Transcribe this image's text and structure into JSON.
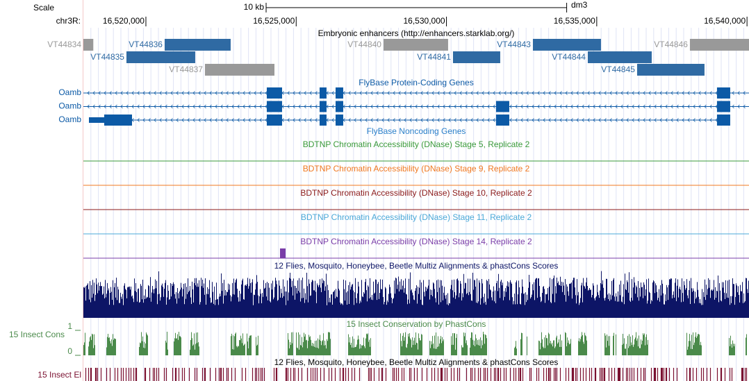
{
  "header": {
    "scale_label": "Scale",
    "chrom_label": "chr3R:",
    "scale_bar": {
      "value": 10000,
      "label": "10 kb"
    },
    "assembly": "dm3"
  },
  "view": {
    "start": 16517920,
    "end": 16540066
  },
  "position_ticks": [
    {
      "value": 16520000,
      "label": "16,520,000"
    },
    {
      "value": 16525000,
      "label": "16,525,000"
    },
    {
      "value": 16530000,
      "label": "16,530,000"
    },
    {
      "value": 16535000,
      "label": "16,535,000"
    },
    {
      "value": 16540000,
      "label": "16,540,000"
    }
  ],
  "tracks": {
    "enhancers": {
      "title": "Embryonic enhancers (http://enhancers.starklab.org/)",
      "items": [
        {
          "name": "VT44834",
          "start": 16517920,
          "end": 16518250,
          "color": "#999999"
        },
        {
          "name": "VT44835",
          "start": 16519353,
          "end": 16521641,
          "color": "#2f6aa3"
        },
        {
          "name": "VT44836",
          "start": 16520624,
          "end": 16522820,
          "color": "#2f6aa3"
        },
        {
          "name": "VT44837",
          "start": 16521965,
          "end": 16524277,
          "color": "#999999"
        },
        {
          "name": "VT44840",
          "start": 16527906,
          "end": 16530055,
          "color": "#999999"
        },
        {
          "name": "VT44841",
          "start": 16530217,
          "end": 16531789,
          "color": "#2f6aa3"
        },
        {
          "name": "VT44843",
          "start": 16532876,
          "end": 16535141,
          "color": "#2f6aa3"
        },
        {
          "name": "VT44844",
          "start": 16534702,
          "end": 16536829,
          "color": "#2f6aa3"
        },
        {
          "name": "VT44845",
          "start": 16536343,
          "end": 16538585,
          "color": "#2f6aa3"
        },
        {
          "name": "VT44846",
          "start": 16538100,
          "end": 16540066,
          "color": "#999999"
        }
      ]
    },
    "protein_genes": {
      "title": "FlyBase Protein-Coding Genes",
      "color": "#0c5aa6",
      "transcripts": [
        {
          "name": "Oamb",
          "start": 16517920,
          "end": 16540066,
          "exons": [
            [
              16524022,
              16524531
            ],
            [
              16525779,
              16526010
            ],
            [
              16526311,
              16526565
            ],
            [
              16539001,
              16539441
            ]
          ]
        },
        {
          "name": "Oamb",
          "start": 16517920,
          "end": 16540066,
          "exons": [
            [
              16524022,
              16524531
            ],
            [
              16525779,
              16526010
            ],
            [
              16526311,
              16526565
            ],
            [
              16531650,
              16532090
            ],
            [
              16539001,
              16539441
            ]
          ]
        },
        {
          "name": "Oamb",
          "start": 16518105,
          "end": 16539441,
          "exons": [
            [
              16518105,
              16518613
            ],
            [
              16518613,
              16519538
            ],
            [
              16524022,
              16524531
            ],
            [
              16525779,
              16526010
            ],
            [
              16526311,
              16526565
            ],
            [
              16531650,
              16532090
            ],
            [
              16539001,
              16539441
            ]
          ]
        }
      ]
    },
    "noncoding_genes": {
      "title": "FlyBase Noncoding Genes",
      "color": "#2a7fc9"
    },
    "dnase": [
      {
        "title": "BDTNP Chromatin Accessibility (DNase) Stage 5, Replicate 2",
        "color": "#3a9a3a"
      },
      {
        "title": "BDTNP Chromatin Accessibility (DNase) Stage 9, Replicate 2",
        "color": "#f07820"
      },
      {
        "title": "BDTNP Chromatin Accessibility (DNase) Stage 10, Replicate 2",
        "color": "#8b1a1a"
      },
      {
        "title": "BDTNP Chromatin Accessibility (DNase) Stage 11, Replicate 2",
        "color": "#4aa8d8"
      },
      {
        "title": "BDTNP Chromatin Accessibility (DNase) Stage 14, Replicate 2",
        "color": "#7a3da8"
      }
    ],
    "multiz": {
      "title": "12 Flies, Mosquito, Honeybee, Beetle Multiz Alignments & phastCons Scores",
      "color": "#0d1566"
    },
    "phastcons": {
      "label": "15 Insect Cons",
      "title": "15 Insect Conservation by PhastCons",
      "ylim": [
        0,
        1
      ],
      "yticks": [
        0,
        1
      ],
      "color": "#4a8a4a"
    },
    "elements": {
      "label": "15 Insect El",
      "title": "12 Flies, Mosquito, Honeybee, Beetle Multiz Alignments & phastCons Scores",
      "color": "#7a1030"
    }
  }
}
